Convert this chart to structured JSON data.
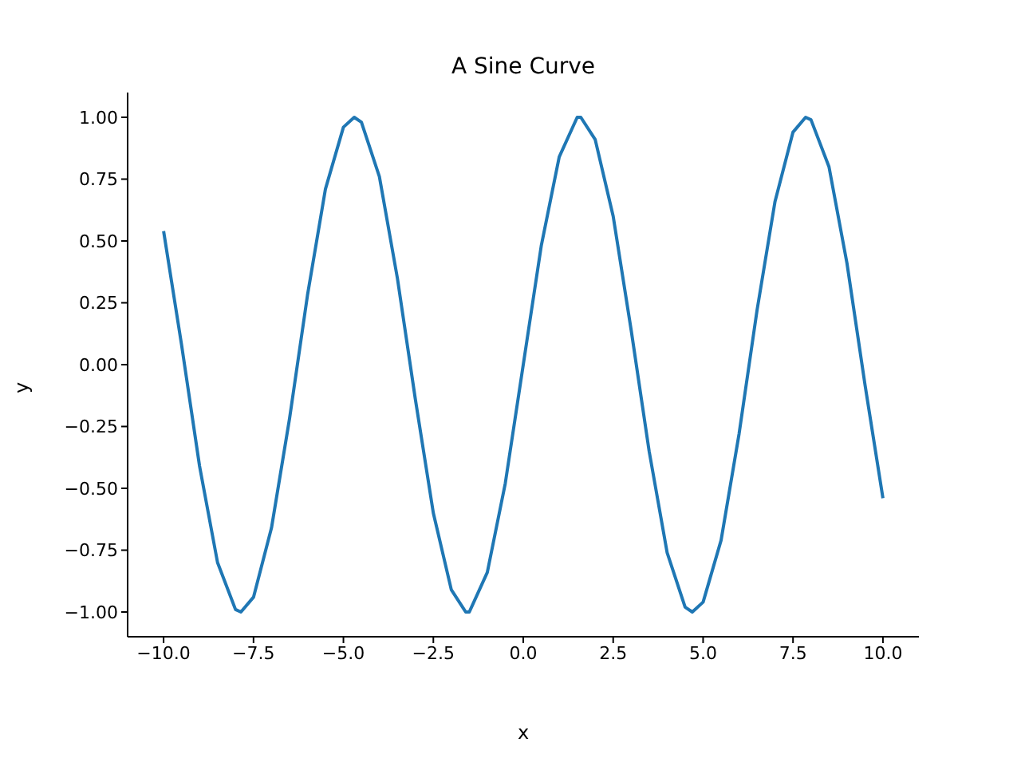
{
  "chart_data": {
    "type": "line",
    "title": "A Sine Curve",
    "xlabel": "x",
    "ylabel": "y",
    "x": [
      -10,
      -9.5,
      -9,
      -8.5,
      -8,
      -7.85,
      -7.5,
      -7,
      -6.5,
      -6,
      -5.5,
      -5,
      -4.7,
      -4.5,
      -4,
      -3.5,
      -3,
      -2.5,
      -2,
      -1.6,
      -1.5,
      -1,
      -0.5,
      0,
      0.5,
      1,
      1.5,
      1.6,
      2,
      2.5,
      3,
      3.5,
      4,
      4.5,
      4.7,
      5,
      5.5,
      6,
      6.5,
      7,
      7.5,
      7.85,
      8,
      8.5,
      9,
      9.5,
      10
    ],
    "series": [
      {
        "color": "#1f77b4",
        "values": [
          0.54,
          0.08,
          -0.41,
          -0.8,
          -0.99,
          -1.0,
          -0.94,
          -0.66,
          -0.22,
          0.28,
          0.71,
          0.96,
          1.0,
          0.98,
          0.76,
          0.35,
          -0.14,
          -0.6,
          -0.91,
          -1.0,
          -1.0,
          -0.84,
          -0.48,
          0,
          0.48,
          0.84,
          1.0,
          1.0,
          0.91,
          0.6,
          0.14,
          -0.35,
          -0.76,
          -0.98,
          -1.0,
          -0.96,
          -0.71,
          -0.28,
          0.22,
          0.66,
          0.94,
          1.0,
          0.99,
          0.8,
          0.41,
          -0.08,
          -0.54
        ]
      }
    ],
    "xlim": [
      -11,
      11
    ],
    "xticks": [
      {
        "value": -10,
        "label": "−10.0"
      },
      {
        "value": -7.5,
        "label": "−7.5"
      },
      {
        "value": -5,
        "label": "−5.0"
      },
      {
        "value": -2.5,
        "label": "−2.5"
      },
      {
        "value": 0,
        "label": "0.0"
      },
      {
        "value": 2.5,
        "label": "2.5"
      },
      {
        "value": 5,
        "label": "5.0"
      },
      {
        "value": 7.5,
        "label": "7.5"
      },
      {
        "value": 10,
        "label": "10.0"
      }
    ],
    "ylim": [
      -1.1,
      1.1
    ],
    "yticks": [
      {
        "value": -1,
        "label": "−1.00"
      },
      {
        "value": -0.75,
        "label": "−0.75"
      },
      {
        "value": -0.5,
        "label": "−0.50"
      },
      {
        "value": -0.25,
        "label": "−0.25"
      },
      {
        "value": 0,
        "label": "0.00"
      },
      {
        "value": 0.25,
        "label": "0.25"
      },
      {
        "value": 0.5,
        "label": "0.50"
      },
      {
        "value": 0.75,
        "label": "0.75"
      },
      {
        "value": 1,
        "label": "1.00"
      }
    ],
    "grid": false,
    "legend": false,
    "marker": "none",
    "line_style": "solid"
  }
}
